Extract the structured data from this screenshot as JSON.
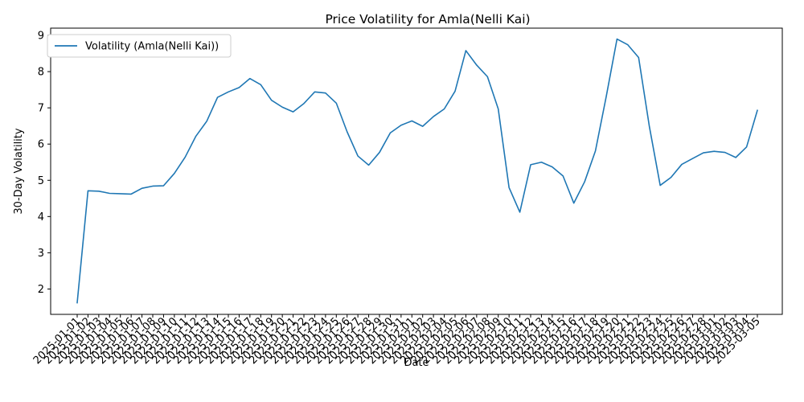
{
  "chart_data": {
    "type": "line",
    "title": "Price Volatility for Amla(Nelli Kai)",
    "xlabel": "Date",
    "ylabel": "30-Day Volatility",
    "legend": "upper-left",
    "grid": false,
    "ylim": [
      1.3,
      9.2
    ],
    "y_ticks": [
      2,
      3,
      4,
      5,
      6,
      7,
      8,
      9
    ],
    "colors": {
      "line": "#1f77b4"
    },
    "x": [
      "2025-01-01",
      "2025-01-02",
      "2025-01-03",
      "2025-01-04",
      "2025-01-05",
      "2025-01-06",
      "2025-01-07",
      "2025-01-08",
      "2025-01-09",
      "2025-01-10",
      "2025-01-11",
      "2025-01-12",
      "2025-01-13",
      "2025-01-14",
      "2025-01-15",
      "2025-01-16",
      "2025-01-17",
      "2025-01-18",
      "2025-01-19",
      "2025-01-20",
      "2025-01-21",
      "2025-01-22",
      "2025-01-23",
      "2025-01-24",
      "2025-01-25",
      "2025-01-26",
      "2025-01-27",
      "2025-01-28",
      "2025-01-29",
      "2025-01-30",
      "2025-01-31",
      "2025-02-01",
      "2025-02-02",
      "2025-02-03",
      "2025-02-04",
      "2025-02-05",
      "2025-02-06",
      "2025-02-07",
      "2025-02-08",
      "2025-02-09",
      "2025-02-10",
      "2025-02-11",
      "2025-02-12",
      "2025-02-13",
      "2025-02-14",
      "2025-02-15",
      "2025-02-16",
      "2025-02-17",
      "2025-02-18",
      "2025-02-19",
      "2025-02-20",
      "2025-02-21",
      "2025-02-22",
      "2025-02-23",
      "2025-02-24",
      "2025-02-25",
      "2025-02-26",
      "2025-02-27",
      "2025-02-28",
      "2025-03-01",
      "2025-03-02",
      "2025-03-03",
      "2025-03-04",
      "2025-03-05"
    ],
    "series": [
      {
        "name": "Volatility (Amla(Nelli Kai))",
        "values": [
          1.62,
          4.71,
          4.7,
          4.64,
          4.63,
          4.62,
          4.78,
          4.84,
          4.85,
          5.19,
          5.64,
          6.22,
          6.63,
          7.29,
          7.44,
          7.56,
          7.81,
          7.64,
          7.21,
          7.02,
          6.89,
          7.12,
          7.44,
          7.41,
          7.13,
          6.34,
          5.67,
          5.42,
          5.77,
          6.31,
          6.52,
          6.64,
          6.49,
          6.76,
          6.97,
          7.46,
          8.58,
          8.18,
          7.86,
          6.97,
          4.8,
          4.12,
          5.43,
          5.5,
          5.37,
          5.12,
          4.37,
          4.96,
          5.81,
          7.31,
          8.9,
          8.74,
          8.39,
          6.48,
          4.86,
          5.08,
          5.44,
          5.6,
          5.76,
          5.8,
          5.77,
          5.63,
          5.92,
          6.93
        ]
      }
    ]
  }
}
